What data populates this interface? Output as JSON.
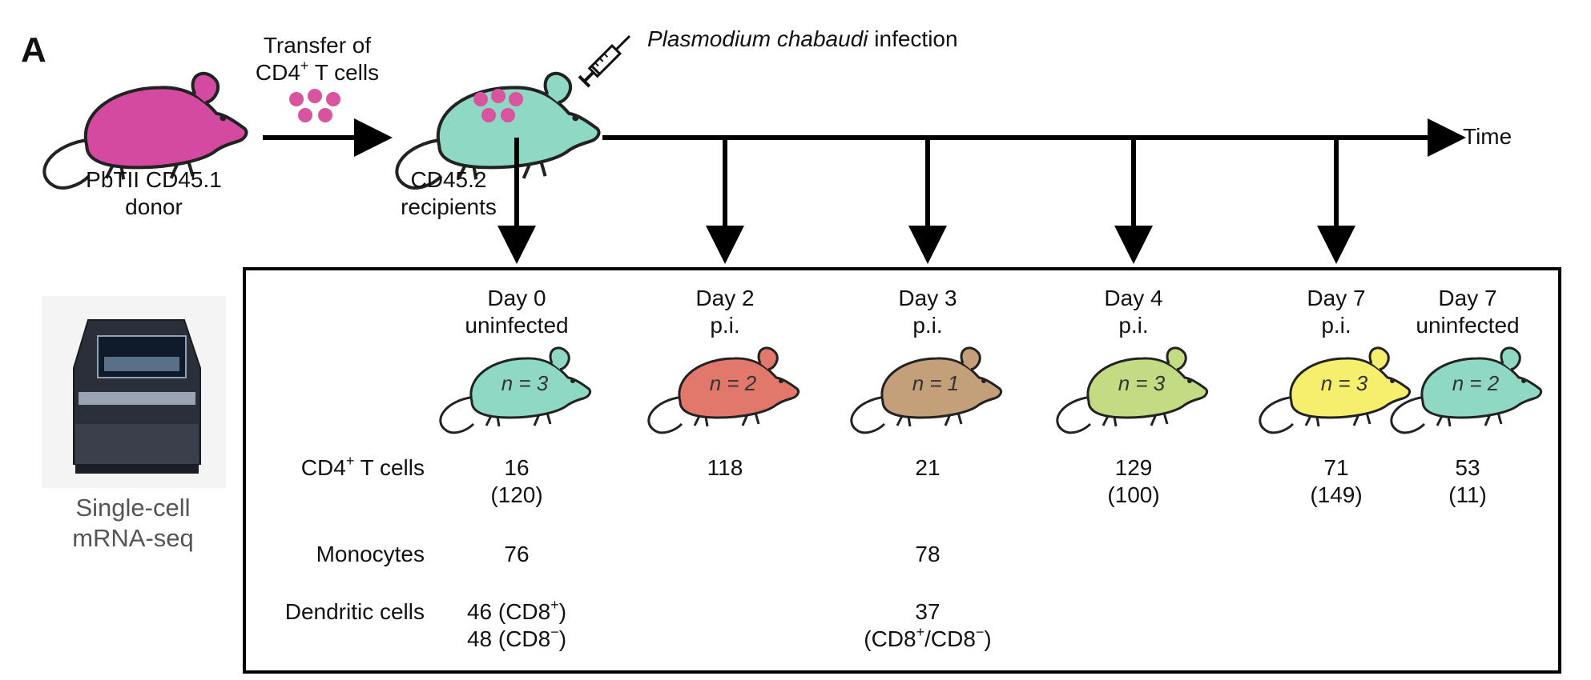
{
  "panel_label": "A",
  "donor": {
    "line1": "PbTII CD45.1",
    "line2": "donor",
    "color": "#d34aa0"
  },
  "transfer": {
    "line1": "Transfer of",
    "line2_pre": "CD4",
    "line2_sup": "+",
    "line2_post": " T cells",
    "dot_color": "#d9549f"
  },
  "recipient": {
    "line1": "CD45.2",
    "line2": "recipients",
    "color": "#8fd8c4"
  },
  "infection": {
    "italic": "Plasmodium chabaudi",
    "rest": " infection"
  },
  "time_label": "Time",
  "machine": {
    "line1": "Single-cell",
    "line2": "mRNA-seq"
  },
  "row_labels": {
    "cd4_pre": "CD4",
    "cd4_sup": "+",
    "cd4_post": " T cells",
    "monocytes": "Monocytes",
    "dendritic": "Dendritic cells"
  },
  "groups": [
    {
      "day": "Day 0",
      "status": "uninfected",
      "n": "n = 3",
      "color": "#8fd8c4",
      "cd4": "16",
      "cd4_sub": "(120)",
      "mono": "76",
      "dc1_pre": "46 (CD8",
      "dc1_sup": "+",
      "dc1_post": ")",
      "dc2_pre": "48 (CD8",
      "dc2_sup": "−",
      "dc2_post": ")"
    },
    {
      "day": "Day 2",
      "status": "p.i.",
      "n": "n = 2",
      "color": "#e2786c",
      "cd4": "118",
      "cd4_sub": "",
      "mono": "",
      "dc1_pre": "",
      "dc1_sup": "",
      "dc1_post": "",
      "dc2_pre": "",
      "dc2_sup": "",
      "dc2_post": ""
    },
    {
      "day": "Day 3",
      "status": "p.i.",
      "n": "n = 1",
      "color": "#c4a07a",
      "cd4": "21",
      "cd4_sub": "",
      "mono": "78",
      "dc1_pre": "37",
      "dc1_sup": "",
      "dc1_post": "",
      "dc2_pre": "(CD8",
      "dc2_sup": "+",
      "dc2_post": "/CD8",
      "dc2_sup2": "−",
      "dc2_post2": ")"
    },
    {
      "day": "Day 4",
      "status": "p.i.",
      "n": "n = 3",
      "color": "#c3dc84",
      "cd4": "129",
      "cd4_sub": "(100)",
      "mono": "",
      "dc1_pre": "",
      "dc1_sup": "",
      "dc1_post": "",
      "dc2_pre": "",
      "dc2_sup": "",
      "dc2_post": ""
    },
    {
      "day": "Day 7",
      "status": "p.i.",
      "n": "n = 3",
      "color": "#f6ef6e",
      "cd4": "71",
      "cd4_sub": "(149)",
      "mono": "",
      "dc1_pre": "",
      "dc1_sup": "",
      "dc1_post": "",
      "dc2_pre": "",
      "dc2_sup": "",
      "dc2_post": ""
    },
    {
      "day": "Day 7",
      "status": "uninfected",
      "n": "n = 2",
      "color": "#8fd8c4",
      "cd4": "53",
      "cd4_sub": "(11)",
      "mono": "",
      "dc1_pre": "",
      "dc1_sup": "",
      "dc1_post": "",
      "dc2_pre": "",
      "dc2_sup": "",
      "dc2_post": ""
    }
  ]
}
